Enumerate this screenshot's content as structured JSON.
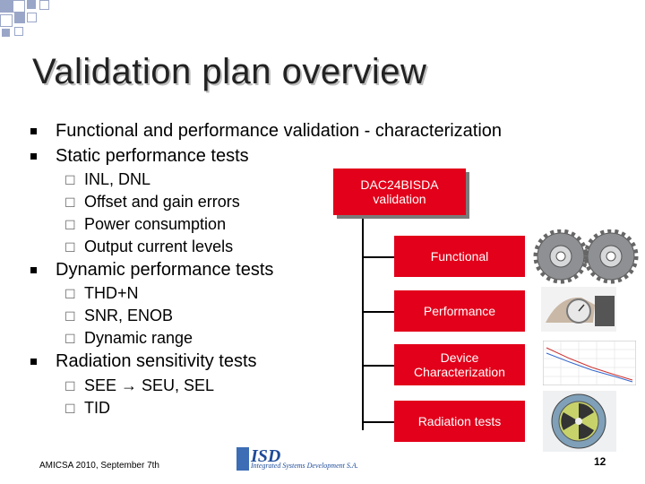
{
  "title": "Validation plan overview",
  "bullets": {
    "b1": "Functional and performance validation - characterization",
    "b2": "Static performance tests",
    "b2_items": [
      "INL, DNL",
      "Offset and gain errors",
      "Power consumption",
      "Output current levels"
    ],
    "b3": "Dynamic performance tests",
    "b3_items": [
      "THD+N",
      "SNR, ENOB",
      "Dynamic range"
    ],
    "b4": "Radiation sensitivity tests",
    "b4_items": [
      "SEE → SEU, SEL",
      "TID"
    ]
  },
  "diagram": {
    "root_line1": "DAC24BISDA",
    "root_line2": "validation",
    "functional": "Functional",
    "performance": "Performance",
    "device_line1": "Device",
    "device_line2": "Characterization",
    "radiation": "Radiation tests",
    "color": "#e2001a"
  },
  "footer": "AMICSA 2010, September 7th",
  "logo": {
    "mark": "ISD",
    "text": "Integrated Systems Development S.A."
  },
  "page_number": "12"
}
